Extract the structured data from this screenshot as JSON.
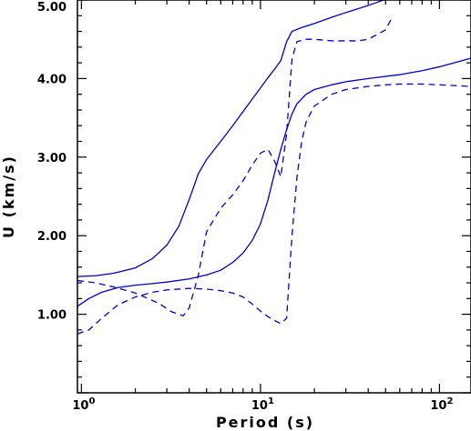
{
  "chart_data": {
    "type": "line",
    "xlabel": "Period (s)",
    "ylabel": "U (km/s)",
    "x_scale": "log",
    "xlim": [
      0.95,
      150
    ],
    "ylim": [
      0.0,
      5.0
    ],
    "y_ticks": [
      {
        "value": 1.0,
        "label": "1.00"
      },
      {
        "value": 2.0,
        "label": "2.00"
      },
      {
        "value": 3.0,
        "label": "3.00"
      },
      {
        "value": 4.0,
        "label": "4.00"
      },
      {
        "value": 5.0,
        "label": "5.00"
      }
    ],
    "x_ticks": [
      {
        "value": 1,
        "base": "10",
        "exp": "0"
      },
      {
        "value": 10,
        "base": "10",
        "exp": "1"
      },
      {
        "value": 100,
        "base": "10",
        "exp": "2"
      }
    ],
    "grid": false,
    "series": [
      {
        "style": "solid",
        "color": "#0000cc",
        "x": [
          0.95,
          1.2,
          1.5,
          2.0,
          2.5,
          3.0,
          3.5,
          4.0,
          4.5,
          5.0,
          6.0,
          7.0,
          8.0,
          9.0,
          10.0,
          11.0,
          12.0,
          13.0,
          14.0,
          15.0,
          17.0,
          20.0,
          25.0,
          30.0,
          40.0,
          50.0,
          55.0
        ],
        "y": [
          1.48,
          1.49,
          1.52,
          1.59,
          1.71,
          1.88,
          2.12,
          2.46,
          2.79,
          2.97,
          3.2,
          3.4,
          3.58,
          3.74,
          3.88,
          4.01,
          4.12,
          4.23,
          4.47,
          4.6,
          4.65,
          4.7,
          4.78,
          4.84,
          4.93,
          5.01,
          5.06
        ]
      },
      {
        "style": "solid",
        "color": "#0000cc",
        "x": [
          0.95,
          1.1,
          1.3,
          1.6,
          2.0,
          2.5,
          3.0,
          4.0,
          5.0,
          6.0,
          7.0,
          8.0,
          9.0,
          10.0,
          11.0,
          12.0,
          13.0,
          14.0,
          15.0,
          16.0,
          18.0,
          20.0,
          25.0,
          30.0,
          40.0,
          60.0,
          80.0,
          100.0,
          130.0,
          150.0
        ],
        "y": [
          1.1,
          1.2,
          1.28,
          1.34,
          1.37,
          1.39,
          1.41,
          1.45,
          1.5,
          1.56,
          1.66,
          1.78,
          1.94,
          2.15,
          2.45,
          2.8,
          3.1,
          3.35,
          3.55,
          3.68,
          3.8,
          3.86,
          3.92,
          3.96,
          4.0,
          4.05,
          4.1,
          4.15,
          4.22,
          4.26
        ]
      },
      {
        "style": "dashed",
        "color": "#0000cc",
        "x": [
          0.95,
          1.2,
          1.5,
          1.8,
          2.0,
          2.3,
          2.7,
          3.2,
          3.7,
          4.0,
          4.5,
          5.0,
          6.0,
          7.0,
          8.0,
          9.0,
          10.0,
          11.0,
          12.0,
          13.0,
          14.0,
          15.0,
          16.0,
          18.0,
          20.0,
          25.0,
          30.0,
          35.0,
          40.0,
          50.0,
          55.0
        ],
        "y": [
          1.43,
          1.4,
          1.35,
          1.3,
          1.27,
          1.21,
          1.14,
          1.03,
          0.98,
          1.08,
          1.5,
          2.05,
          2.35,
          2.52,
          2.7,
          2.9,
          3.05,
          3.1,
          2.95,
          2.75,
          3.3,
          4.25,
          4.47,
          4.5,
          4.5,
          4.48,
          4.48,
          4.48,
          4.5,
          4.62,
          4.8
        ]
      },
      {
        "style": "dashed",
        "color": "#0000cc",
        "x": [
          0.95,
          1.1,
          1.3,
          1.6,
          2.0,
          2.5,
          3.0,
          3.5,
          4.0,
          5.0,
          6.0,
          7.0,
          8.0,
          9.0,
          10.0,
          11.0,
          12.0,
          13.0,
          14.0,
          15.0,
          16.0,
          17.0,
          18.0,
          20.0,
          25.0,
          30.0,
          40.0,
          50.0,
          60.0,
          80.0,
          100.0,
          150.0
        ],
        "y": [
          0.75,
          0.8,
          0.95,
          1.12,
          1.22,
          1.28,
          1.31,
          1.32,
          1.33,
          1.32,
          1.3,
          1.27,
          1.22,
          1.13,
          1.04,
          0.97,
          0.92,
          0.88,
          0.95,
          2.0,
          2.75,
          3.2,
          3.45,
          3.65,
          3.8,
          3.86,
          3.9,
          3.92,
          3.93,
          3.93,
          3.92,
          3.9
        ]
      }
    ]
  }
}
